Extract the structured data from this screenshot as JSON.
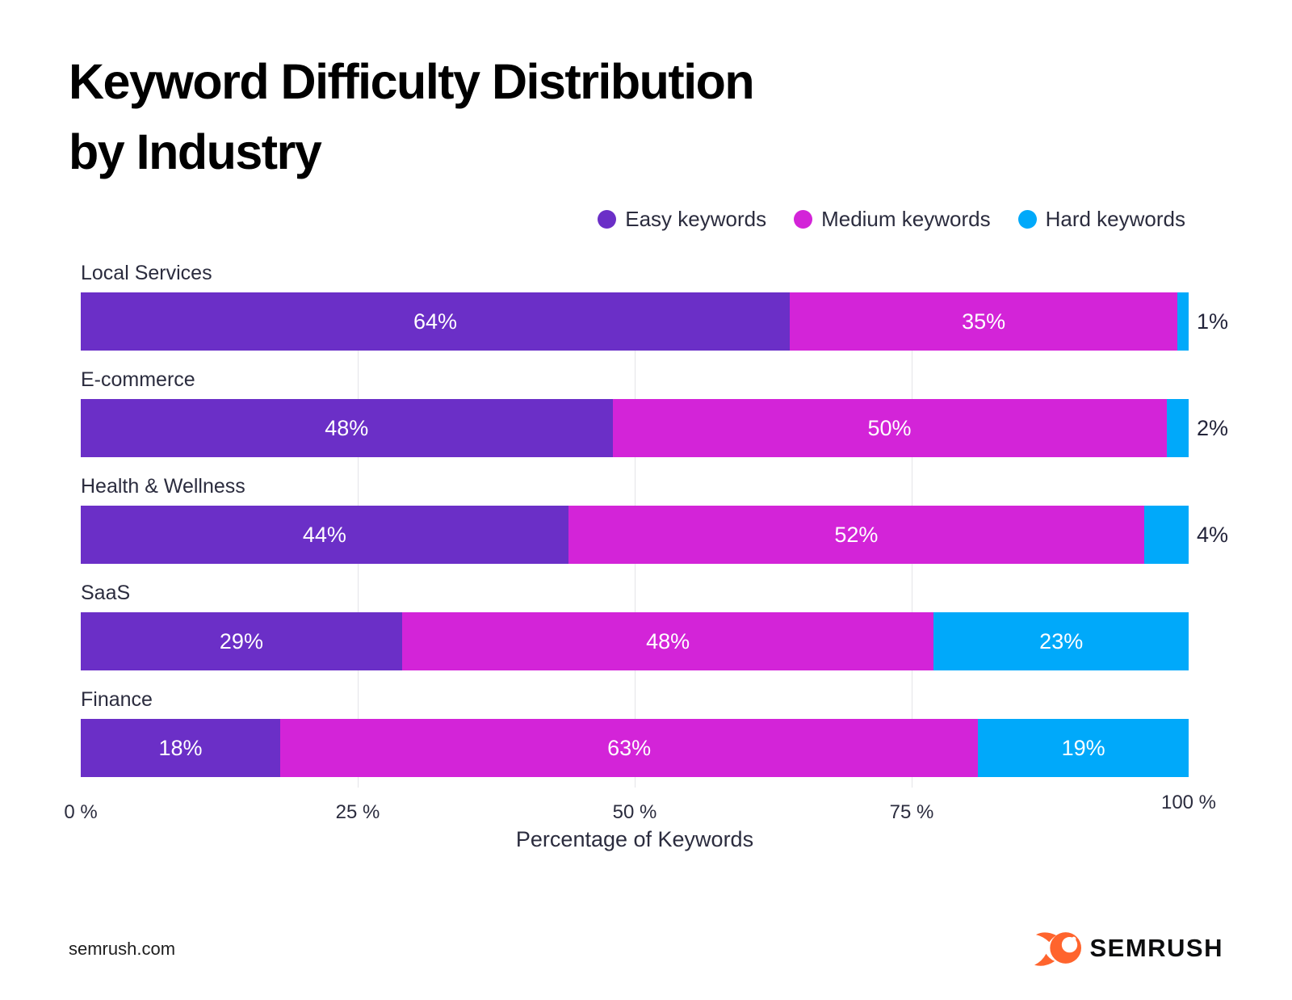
{
  "header": {
    "title_line1": "Keyword Difficulty Distribution",
    "title_line2": "by Industry"
  },
  "chart_data": {
    "type": "bar",
    "orientation": "horizontal",
    "stacked": true,
    "title": "Keyword Difficulty Distribution by Industry",
    "categories": [
      "Local Services",
      "E-commerce",
      "Health & Wellness",
      "SaaS",
      "Finance"
    ],
    "series": [
      {
        "name": "Easy keywords",
        "color": "#6B2FC7",
        "values": [
          64,
          48,
          44,
          29,
          18
        ]
      },
      {
        "name": "Medium keywords",
        "color": "#D324D8",
        "values": [
          35,
          50,
          52,
          48,
          63
        ]
      },
      {
        "name": "Hard keywords",
        "color": "#00A9FA",
        "values": [
          1,
          2,
          4,
          23,
          19
        ]
      }
    ],
    "value_suffix": "%",
    "outside_label_max": 5,
    "xlabel": "Percentage of Keywords",
    "xlim": [
      0,
      100
    ],
    "x_ticks": [
      {
        "value": 0,
        "label": "0 %"
      },
      {
        "value": 25,
        "label": "25 %"
      },
      {
        "value": 50,
        "label": "50 %"
      },
      {
        "value": 75,
        "label": "75 %"
      },
      {
        "value": 100,
        "label": "100 %",
        "raised": true
      }
    ],
    "gridline_values": [
      25,
      50,
      75
    ],
    "grid": true,
    "legend_position": "top-right",
    "colors": {
      "grid": "#E4E4E8",
      "text_dark": "#2B2C3E",
      "bar_label": "#FFFFFF"
    }
  },
  "footer": {
    "site": "semrush.com",
    "brand": "SEMRUSH",
    "brand_color": "#FF642D"
  }
}
